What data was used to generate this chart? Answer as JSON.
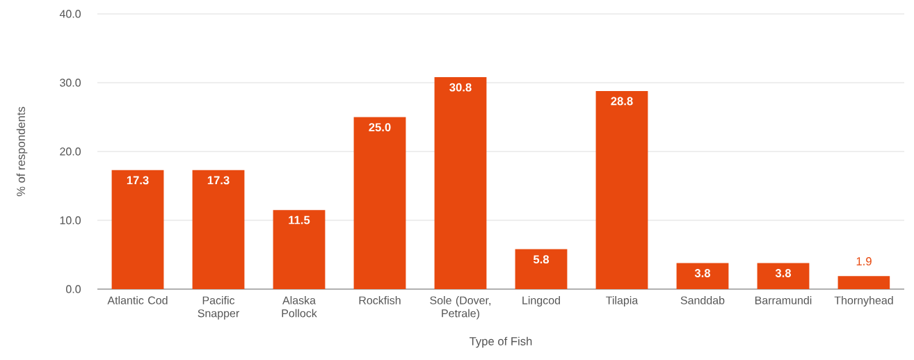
{
  "chart_data": {
    "type": "bar",
    "xlabel": "Type of Fish",
    "ylabel": "% of respondents",
    "categories": [
      "Atlantic Cod",
      "Pacific Snapper",
      "Alaska Pollock",
      "Rockfish",
      "Sole (Dover, Petrale)",
      "Lingcod",
      "Tilapia",
      "Sanddab",
      "Barramundi",
      "Thornyhead"
    ],
    "values": [
      17.3,
      17.3,
      11.5,
      25.0,
      30.8,
      5.8,
      28.8,
      3.8,
      3.8,
      1.9
    ],
    "value_labels": [
      "17.3",
      "17.3",
      "11.5",
      "25.0",
      "30.8",
      "5.8",
      "28.8",
      "3.8",
      "3.8",
      "1.9"
    ],
    "color": "#e8490f",
    "ylim": [
      0,
      40
    ],
    "yticks": [
      {
        "value": 0,
        "label": "0.0"
      },
      {
        "value": 10,
        "label": "10.0"
      },
      {
        "value": 20,
        "label": "20.0"
      },
      {
        "value": 30,
        "label": "30.0"
      },
      {
        "value": 40,
        "label": "40.0"
      }
    ],
    "grid": "y"
  }
}
